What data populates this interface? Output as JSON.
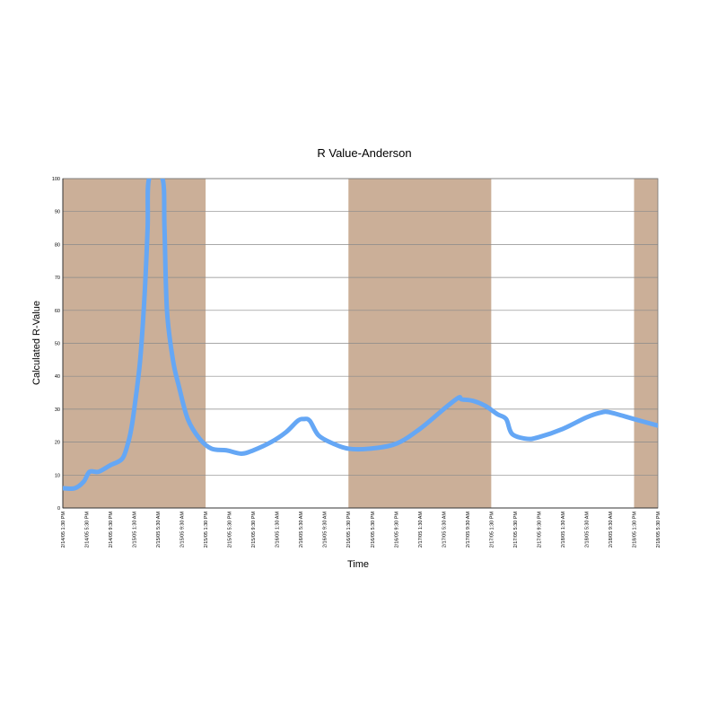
{
  "chart_data": {
    "type": "line",
    "title": "R Value-Anderson",
    "xlabel": "Time",
    "ylabel": "Calculated R-Value",
    "ylim": [
      0,
      100
    ],
    "yticks": [
      0,
      10,
      20,
      30,
      40,
      50,
      60,
      70,
      80,
      90,
      100
    ],
    "xlim": [
      "2/14/05 1:30 PM",
      "2/18/05 5:30 PM"
    ],
    "xticks": [
      "2/14/05 1:30 PM",
      "2/14/05 5:30 PM",
      "2/14/05 9:30 PM",
      "2/15/05 1:30 AM",
      "2/15/05 5:30 AM",
      "2/15/05 9:30 AM",
      "2/15/05 1:30 PM",
      "2/15/05 5:30 PM",
      "2/15/05 9:30 PM",
      "2/16/05 1:30 AM",
      "2/16/05 5:30 AM",
      "2/16/05 9:30 AM",
      "2/16/05 1:30 PM",
      "2/16/05 5:30 PM",
      "2/16/05 9:30 PM",
      "2/17/05 1:30 AM",
      "2/17/05 5:30 AM",
      "2/17/05 9:30 AM",
      "2/17/05 1:30 PM",
      "2/17/05 5:30 PM",
      "2/17/05 9:30 PM",
      "2/18/05 1:30 AM",
      "2/18/05 5:30 AM",
      "2/18/05 9:30 AM",
      "2/18/05 1:30 PM",
      "2/18/05 5:30 PM"
    ],
    "grid": true,
    "legend": "none",
    "shaded_bands": [
      {
        "start": "2/14/05 1:30 PM",
        "end": "2/15/05 1:30 PM"
      },
      {
        "start": "2/16/05 1:30 PM",
        "end": "2/17/05 1:30 PM"
      },
      {
        "start": "2/18/05 1:30 PM",
        "end": "2/18/05 5:30 PM"
      }
    ],
    "series": [
      {
        "color": "#65a7f5",
        "x": [
          "2/14/05 1:30 PM",
          "2/14/05 3:30 PM",
          "2/14/05 5:00 PM",
          "2/14/05 6:00 PM",
          "2/14/05 7:30 PM",
          "2/14/05 9:30 PM",
          "2/14/05 11:30 PM",
          "2/15/05 12:30 AM",
          "2/15/05 1:00 AM",
          "2/15/05 1:30 AM",
          "2/15/05 2:30 AM",
          "2/15/05 3:15 AM",
          "2/15/05 3:45 AM",
          "2/15/05 4:00 AM",
          "2/15/05 6:15 AM",
          "2/15/05 6:35 AM",
          "2/15/05 7:00 AM",
          "2/15/05 8:00 AM",
          "2/15/05 9:00 AM",
          "2/15/05 10:30 AM",
          "2/15/05 12:30 PM",
          "2/15/05 2:30 PM",
          "2/15/05 5:00 PM",
          "2/15/05 7:30 PM",
          "2/15/05 9:30 PM",
          "2/16/05 12:30 AM",
          "2/16/05 3:00 AM",
          "2/16/05 5:00 AM",
          "2/16/05 6:00 AM",
          "2/16/05 7:00 AM",
          "2/16/05 8:30 AM",
          "2/16/05 11:00 AM",
          "2/16/05 1:30 PM",
          "2/16/05 5:00 PM",
          "2/16/05 9:30 PM",
          "2/17/05 1:30 AM",
          "2/17/05 5:30 AM",
          "2/17/05 8:00 AM",
          "2/17/05 8:30 AM",
          "2/17/05 10:30 AM",
          "2/17/05 12:30 PM",
          "2/17/05 2:30 PM",
          "2/17/05 4:00 PM",
          "2/17/05 5:00 PM",
          "2/17/05 7:30 PM",
          "2/17/05 9:30 PM",
          "2/18/05 1:30 AM",
          "2/18/05 5:30 AM",
          "2/18/05 8:00 AM",
          "2/18/05 9:30 AM",
          "2/18/05 1:30 PM",
          "2/18/05 5:30 PM"
        ],
        "y": [
          6,
          6,
          8,
          11,
          11,
          13,
          15,
          20,
          24,
          30,
          45,
          65,
          85,
          100,
          100,
          85,
          60,
          45,
          37,
          27,
          21,
          18,
          17.5,
          16.5,
          17.5,
          20,
          23,
          26.5,
          27,
          26.5,
          22,
          19.5,
          18,
          18,
          19.5,
          24,
          30,
          33.5,
          33,
          32.5,
          31,
          28.5,
          27,
          22.5,
          21,
          21.5,
          24,
          27.5,
          29,
          29,
          27,
          25
        ]
      }
    ]
  }
}
